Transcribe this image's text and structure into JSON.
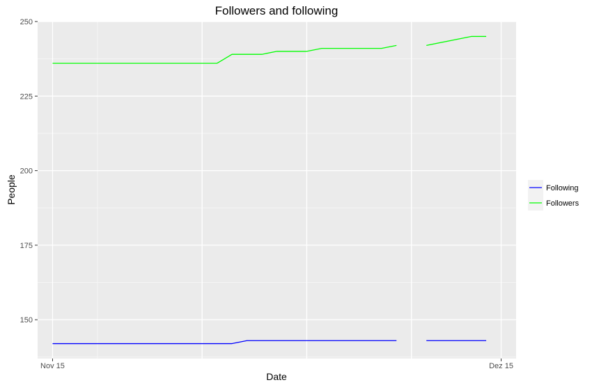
{
  "chart_data": {
    "type": "line",
    "title": "Followers and following",
    "xlabel": "Date",
    "ylabel": "People",
    "xlim": [
      "2017-11-14",
      "2017-12-16"
    ],
    "ylim": [
      137,
      250
    ],
    "x_ticks": [
      {
        "date": "2017-11-15",
        "label": "Nov 15"
      },
      {
        "date": "2017-12-15",
        "label": "Dez 15"
      }
    ],
    "y_ticks": [
      {
        "value": 150,
        "label": "150"
      },
      {
        "value": 175,
        "label": "175"
      },
      {
        "value": 200,
        "label": "200"
      },
      {
        "value": 225,
        "label": "225"
      },
      {
        "value": 250,
        "label": "250"
      }
    ],
    "grid": true,
    "legend_position": "right",
    "series": [
      {
        "name": "Following",
        "color": "#0000ff",
        "segments": [
          [
            {
              "x": "2017-11-15",
              "y": 142
            },
            {
              "x": "2017-11-27",
              "y": 142
            },
            {
              "x": "2017-11-28",
              "y": 143
            },
            {
              "x": "2017-12-08",
              "y": 143
            }
          ],
          [
            {
              "x": "2017-12-10",
              "y": 143
            },
            {
              "x": "2017-12-14",
              "y": 143
            }
          ]
        ]
      },
      {
        "name": "Followers",
        "color": "#00ff00",
        "segments": [
          [
            {
              "x": "2017-11-15",
              "y": 236
            },
            {
              "x": "2017-11-26",
              "y": 236
            },
            {
              "x": "2017-11-27",
              "y": 239
            },
            {
              "x": "2017-11-29",
              "y": 239
            },
            {
              "x": "2017-11-30",
              "y": 240
            },
            {
              "x": "2017-12-02",
              "y": 240
            },
            {
              "x": "2017-12-03",
              "y": 241
            },
            {
              "x": "2017-12-07",
              "y": 241
            },
            {
              "x": "2017-12-08",
              "y": 242
            }
          ],
          [
            {
              "x": "2017-12-10",
              "y": 242
            },
            {
              "x": "2017-12-13",
              "y": 245
            },
            {
              "x": "2017-12-14",
              "y": 245
            }
          ]
        ]
      }
    ]
  }
}
